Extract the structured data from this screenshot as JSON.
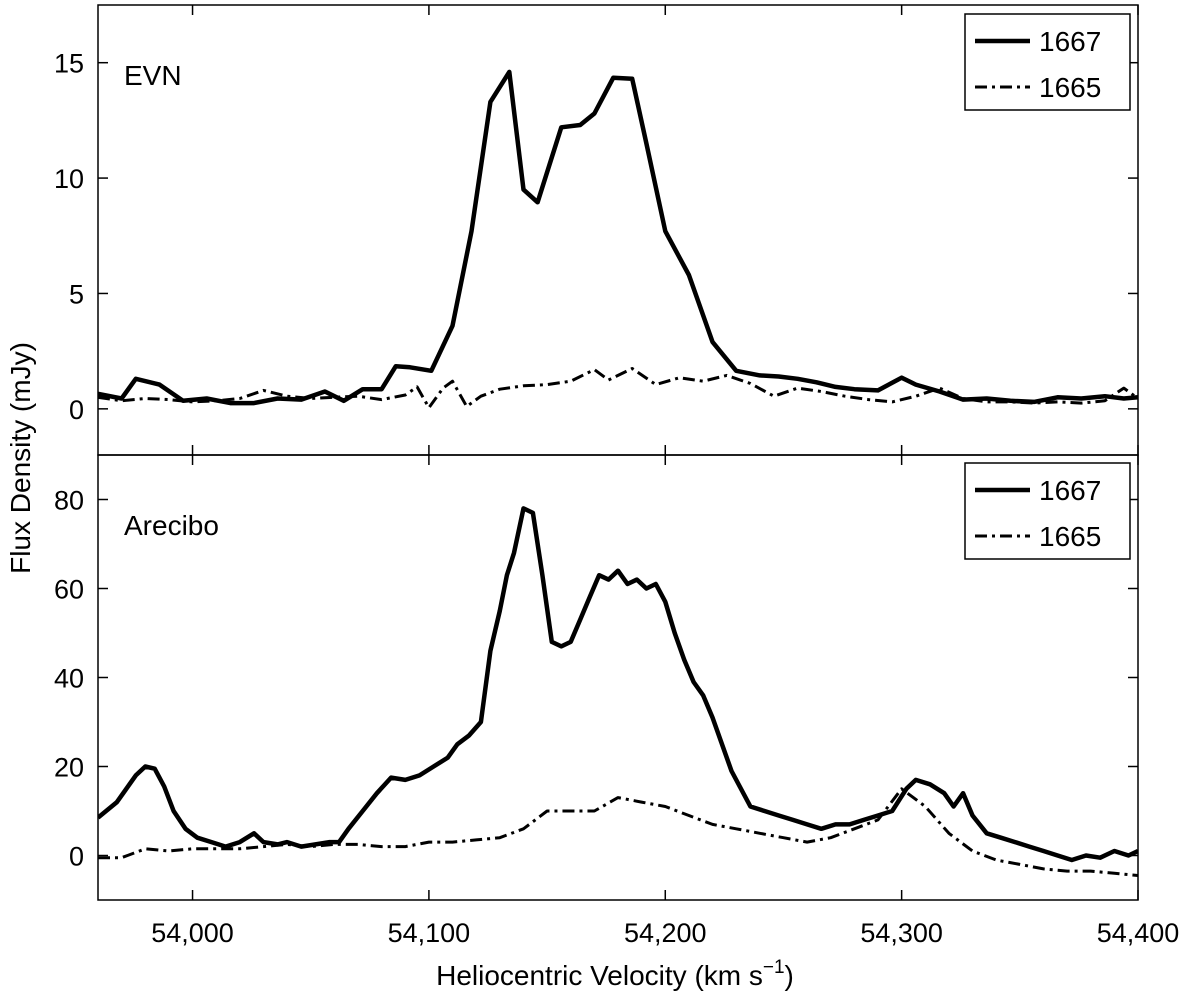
{
  "chart_data": [
    {
      "type": "line",
      "panel_label": "EVN",
      "xlim": [
        53960,
        54400
      ],
      "ylim": [
        -2,
        17.5
      ],
      "yticks": [
        "0",
        "5",
        "10",
        "15"
      ],
      "legend_position": "top-right",
      "series": [
        {
          "name": "1667",
          "style": "solid",
          "x": [
            53960,
            53970,
            53976,
            53986,
            53996,
            54006,
            54016,
            54026,
            54036,
            54046,
            54056,
            54064,
            54072,
            54080,
            54086,
            54092,
            54101,
            54110,
            54118,
            54126,
            54134,
            54140,
            54146,
            54156,
            54164,
            54170,
            54178,
            54186,
            54192,
            54200,
            54210,
            54220,
            54230,
            54240,
            54248,
            54256,
            54264,
            54272,
            54280,
            54290,
            54300,
            54306,
            54316,
            54326,
            54336,
            54346,
            54356,
            54366,
            54376,
            54386,
            54394,
            54400
          ],
          "y": [
            0.65,
            0.45,
            1.3,
            1.05,
            0.35,
            0.45,
            0.25,
            0.25,
            0.45,
            0.4,
            0.75,
            0.35,
            0.85,
            0.85,
            1.85,
            1.8,
            1.65,
            3.6,
            7.7,
            13.3,
            14.6,
            9.5,
            8.95,
            12.2,
            12.3,
            12.8,
            14.35,
            14.3,
            11.5,
            7.7,
            5.8,
            2.9,
            1.65,
            1.45,
            1.4,
            1.3,
            1.15,
            0.95,
            0.85,
            0.8,
            1.35,
            1.05,
            0.75,
            0.4,
            0.45,
            0.35,
            0.3,
            0.5,
            0.45,
            0.55,
            0.45,
            0.5
          ]
        },
        {
          "name": "1665",
          "style": "dashdot",
          "x": [
            53960,
            53970,
            53980,
            53990,
            54000,
            54010,
            54020,
            54030,
            54040,
            54050,
            54060,
            54070,
            54080,
            54090,
            54095,
            54100,
            54106,
            54110,
            54116,
            54122,
            54130,
            54140,
            54150,
            54160,
            54170,
            54176,
            54186,
            54196,
            54206,
            54216,
            54226,
            54236,
            54246,
            54256,
            54266,
            54276,
            54286,
            54296,
            54306,
            54316,
            54326,
            54336,
            54346,
            54356,
            54366,
            54376,
            54386,
            54394,
            54400
          ],
          "y": [
            0.5,
            0.35,
            0.45,
            0.4,
            0.3,
            0.35,
            0.45,
            0.8,
            0.55,
            0.45,
            0.5,
            0.55,
            0.4,
            0.6,
            0.95,
            0.05,
            0.9,
            1.2,
            0.1,
            0.55,
            0.85,
            1.0,
            1.05,
            1.2,
            1.7,
            1.25,
            1.75,
            1.05,
            1.35,
            1.2,
            1.45,
            1.1,
            0.55,
            0.9,
            0.75,
            0.55,
            0.4,
            0.3,
            0.55,
            0.9,
            0.45,
            0.3,
            0.3,
            0.25,
            0.3,
            0.25,
            0.35,
            0.9,
            0.45
          ]
        }
      ]
    },
    {
      "type": "line",
      "panel_label": "Arecibo",
      "xlim": [
        53960,
        54400
      ],
      "ylim": [
        -10,
        90
      ],
      "yticks": [
        "0",
        "20",
        "40",
        "60",
        "80"
      ],
      "legend_position": "top-right",
      "series": [
        {
          "name": "1667",
          "style": "solid",
          "x": [
            53960,
            53968,
            53976,
            53980,
            53984,
            53988,
            53992,
            53997,
            54002,
            54008,
            54014,
            54020,
            54026,
            54030,
            54036,
            54040,
            54046,
            54052,
            54058,
            54062,
            54066,
            54072,
            54078,
            54084,
            54090,
            54096,
            54102,
            54108,
            54112,
            54117,
            54122,
            54126,
            54130,
            54133,
            54136,
            54140,
            54144,
            54148,
            54152,
            54156,
            54160,
            54164,
            54168,
            54172,
            54176,
            54180,
            54184,
            54188,
            54192,
            54196,
            54200,
            54204,
            54208,
            54212,
            54216,
            54220,
            54224,
            54228,
            54236,
            54242,
            54248,
            54254,
            54260,
            54266,
            54272,
            54278,
            54284,
            54290,
            54296,
            54302,
            54306,
            54312,
            54318,
            54322,
            54326,
            54330,
            54336,
            54342,
            54348,
            54354,
            54360,
            54366,
            54372,
            54378,
            54384,
            54390,
            54396,
            54400
          ],
          "y": [
            8.5,
            12,
            18,
            20,
            19.5,
            15.5,
            10,
            6,
            4,
            3,
            2,
            3,
            5,
            3,
            2.5,
            3,
            2,
            2.5,
            3,
            3,
            6,
            10,
            14,
            17.5,
            17,
            18,
            20,
            22,
            25,
            27,
            30,
            46,
            55,
            63,
            68,
            78,
            77,
            63,
            48,
            47,
            48,
            53,
            58,
            63,
            62,
            64,
            61,
            62,
            60,
            61,
            57,
            50,
            44,
            39,
            36,
            31,
            25,
            19,
            11,
            10,
            9,
            8,
            7,
            6,
            7,
            7,
            8,
            9,
            10,
            15,
            17,
            16,
            14,
            11,
            14,
            9,
            5,
            4,
            3,
            2,
            1,
            0,
            -1,
            0,
            -0.5,
            1,
            0,
            1
          ]
        },
        {
          "name": "1665",
          "style": "dashdot",
          "x": [
            53960,
            53970,
            53980,
            53990,
            54000,
            54010,
            54020,
            54030,
            54040,
            54050,
            54060,
            54070,
            54080,
            54090,
            54100,
            54110,
            54120,
            54130,
            54140,
            54150,
            54160,
            54170,
            54180,
            54190,
            54200,
            54210,
            54220,
            54230,
            54240,
            54250,
            54260,
            54270,
            54280,
            54290,
            54300,
            54310,
            54320,
            54330,
            54340,
            54350,
            54360,
            54370,
            54380,
            54390,
            54400
          ],
          "y": [
            -0.5,
            -0.5,
            1.5,
            1,
            1.5,
            1.5,
            1.5,
            2,
            2.5,
            2,
            2.5,
            2.5,
            2,
            2,
            3,
            3,
            3.5,
            4,
            6,
            10,
            10,
            10,
            13,
            12,
            11,
            9,
            7,
            6,
            5,
            4,
            3,
            4,
            6,
            8,
            15,
            11,
            5,
            1,
            -1,
            -2,
            -3,
            -3.5,
            -3.5,
            -4,
            -4.5
          ]
        }
      ]
    }
  ],
  "x_ticks": [
    "54,000",
    "54,100",
    "54,200",
    "54,300",
    "54,400"
  ],
  "x_tick_values": [
    54000,
    54100,
    54200,
    54300,
    54400
  ],
  "xlabel": {
    "main": "Heliocentric Velocity (km s",
    "superscript": "−1",
    "close": ")"
  },
  "ylabel": "Flux Density (mJy)"
}
